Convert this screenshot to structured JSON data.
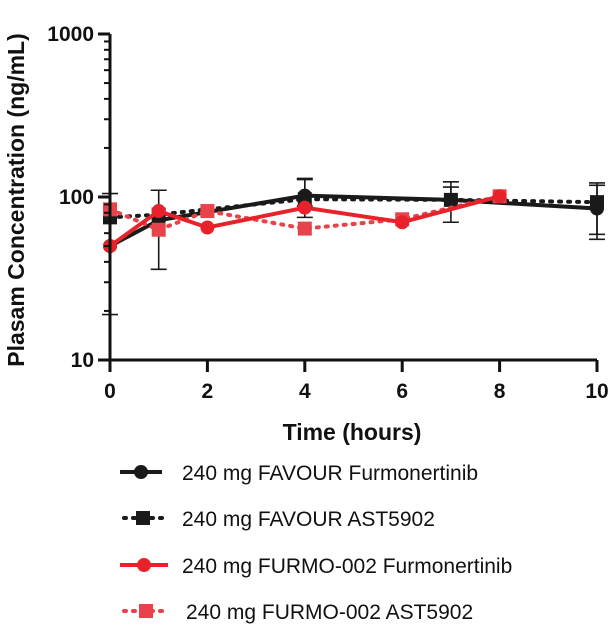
{
  "chart_data": {
    "type": "line",
    "xlabel": "Time (hours)",
    "ylabel": "Plasam Concentration (ng/mL)",
    "xlim": [
      0,
      10
    ],
    "ylim": [
      10,
      1000
    ],
    "yscale": "log",
    "xticks": [
      0,
      2,
      4,
      6,
      8,
      10
    ],
    "yticks": [
      10,
      100,
      1000
    ],
    "grid": false,
    "legend_position": "bottom",
    "series": [
      {
        "name": "240 mg FAVOUR Furmonertinib",
        "color": "#1a1a1a",
        "marker": "circle",
        "line": "solid",
        "x": [
          0,
          1,
          4,
          7,
          10
        ],
        "y": [
          50,
          72,
          102,
          96,
          85
        ],
        "err_upper": [
          null,
          null,
          128,
          115,
          118
        ],
        "err_lower": [
          null,
          null,
          88,
          null,
          55
        ]
      },
      {
        "name": "240 mg FAVOUR AST5902",
        "color": "#1a1a1a",
        "marker": "square",
        "line": "dotted",
        "x": [
          0,
          1,
          4,
          7,
          10
        ],
        "y": [
          75,
          78,
          97,
          96,
          93
        ],
        "err_upper": [
          105,
          110,
          130,
          124,
          122
        ],
        "err_lower": [
          19,
          36,
          75,
          70,
          59
        ]
      },
      {
        "name": "240 mg FURMO-002 Furmonertinib",
        "color": "#e8222a",
        "marker": "circle",
        "line": "solid",
        "x": [
          0,
          1,
          2,
          4,
          6,
          8
        ],
        "y": [
          50,
          82,
          65,
          86,
          70,
          101
        ],
        "err_upper": [
          null,
          null,
          null,
          null,
          null,
          null
        ],
        "err_lower": [
          null,
          null,
          null,
          null,
          null,
          null
        ]
      },
      {
        "name": "240 mg FURMO-002 AST5902",
        "color": "#e8424a",
        "marker": "square",
        "line": "dotted",
        "x": [
          0,
          1,
          2,
          4,
          6,
          8
        ],
        "y": [
          84,
          63,
          82,
          64,
          73,
          101
        ],
        "err_upper": [
          null,
          null,
          null,
          null,
          null,
          null
        ],
        "err_lower": [
          null,
          null,
          null,
          null,
          null,
          null
        ]
      }
    ]
  }
}
